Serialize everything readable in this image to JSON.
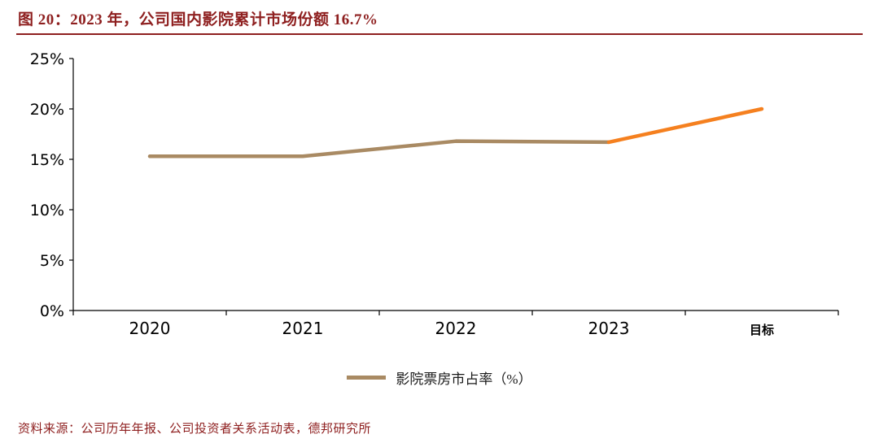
{
  "header": {
    "title": "图 20：2023 年，公司国内影院累计市场份额 16.7%"
  },
  "legend": {
    "label": "影院票房市占率（%）"
  },
  "footer": {
    "source": "资料来源：公司历年年报、公司投资者关系活动表，德邦研究所"
  },
  "chart_data": {
    "type": "line",
    "title": "图 20：2023 年，公司国内影院累计市场份额 16.7%",
    "categories": [
      "2020",
      "2021",
      "2022",
      "2023",
      "目标"
    ],
    "series": [
      {
        "name": "影院票房市占率（%）",
        "values": [
          15.3,
          15.3,
          16.8,
          16.7,
          20.0
        ]
      }
    ],
    "xlabel": "",
    "ylabel": "",
    "ylim": [
      0,
      25
    ],
    "ytick_step": 5,
    "ytick_format": "percent",
    "grid": false,
    "legend_position": "bottom",
    "highlight_last_segment": true,
    "colors": {
      "main_line": "#A98A63",
      "target_segment": "#F5801F",
      "axis": "#000000",
      "title": "#8E1F1F"
    }
  }
}
